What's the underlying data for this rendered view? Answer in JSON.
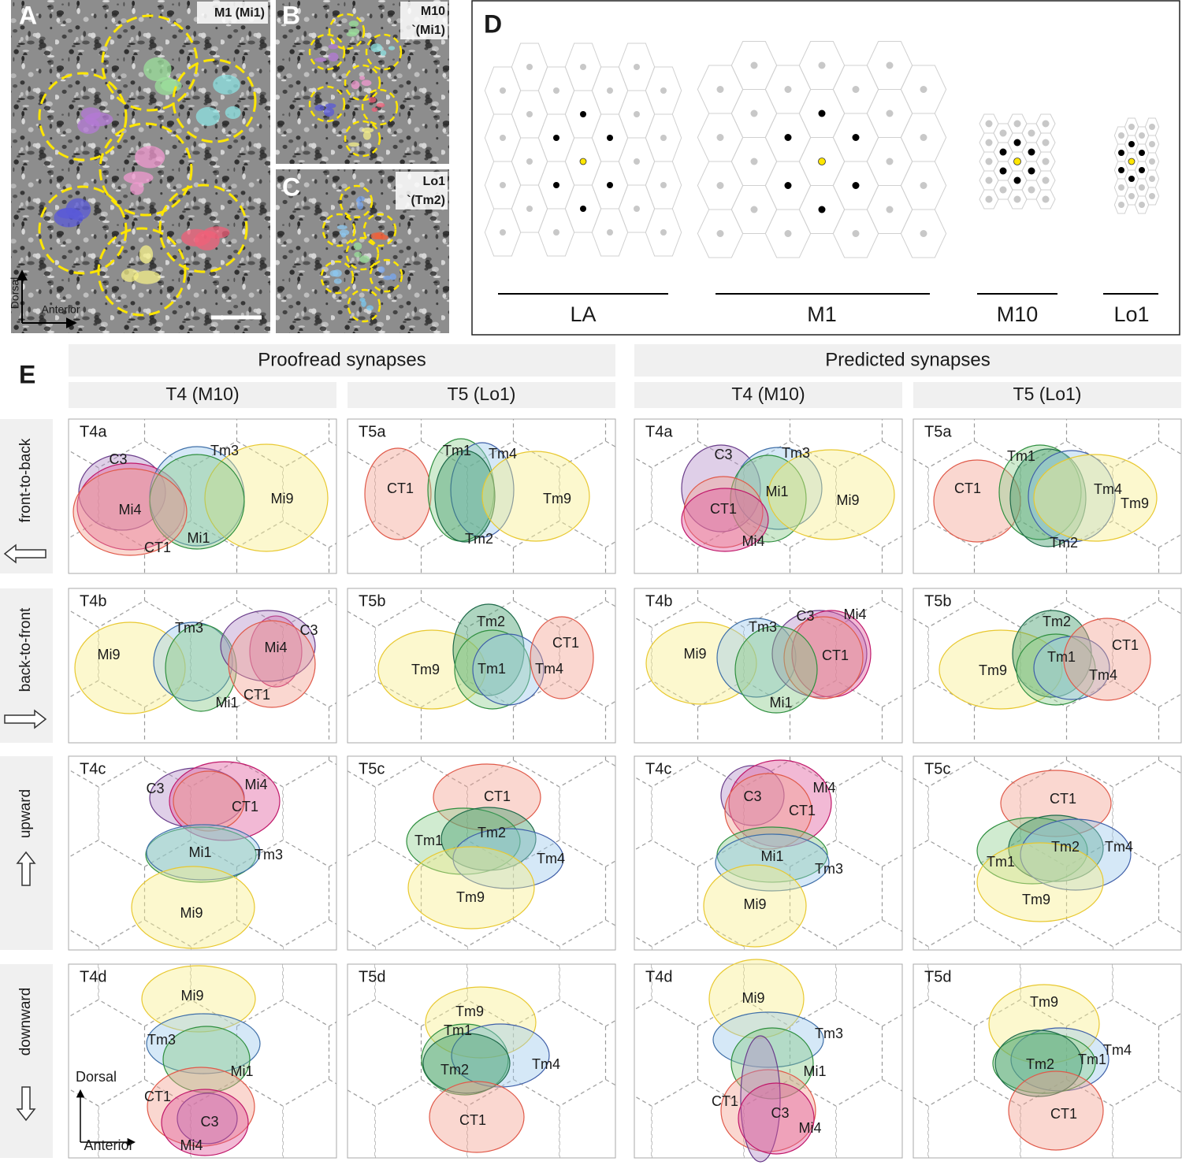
{
  "panel_a": {
    "letter": "A",
    "label": "M1 (Mi1)",
    "axes": [
      "Dorsal",
      "Anterior"
    ]
  },
  "panel_b": {
    "letter": "B",
    "label": [
      "M10",
      "`(Mi1)"
    ]
  },
  "panel_c": {
    "letter": "C",
    "label": [
      "Lo1",
      "`(Tm2)"
    ]
  },
  "panel_d": {
    "letter": "D",
    "regions": [
      "LA",
      "M1",
      "M10",
      "Lo1"
    ]
  },
  "panel_e": {
    "letter": "E",
    "groups": [
      "Proofread synapses",
      "Predicted synapses"
    ],
    "columns": [
      "T4 (M10)",
      "T5 (Lo1)",
      "T4 (M10)",
      "T5 (Lo1)"
    ],
    "rows": [
      "front-to-back",
      "back-to-front",
      "upward",
      "downward"
    ],
    "axes": [
      "Dorsal",
      "Anterior"
    ],
    "panels": [
      {
        "title": "T4a",
        "labels": [
          "C3",
          "Mi4",
          "Tm3",
          "Mi9",
          "Mi1",
          "CT1"
        ]
      },
      {
        "title": "T5a",
        "labels": [
          "CT1",
          "Tm1",
          "Tm4",
          "Tm2",
          "Tm9"
        ]
      },
      {
        "title": "T4a",
        "labels": [
          "C3",
          "Tm3",
          "Mi1",
          "Mi9",
          "CT1",
          "Mi4"
        ]
      },
      {
        "title": "T5a",
        "labels": [
          "CT1",
          "Tm1",
          "Tm2",
          "Tm4",
          "Tm9"
        ]
      },
      {
        "title": "T4b",
        "labels": [
          "Mi9",
          "Tm3",
          "Mi1",
          "Mi4",
          "C3",
          "CT1"
        ]
      },
      {
        "title": "T5b",
        "labels": [
          "Tm9",
          "Tm2",
          "Tm1",
          "Tm4",
          "CT1"
        ]
      },
      {
        "title": "T4b",
        "labels": [
          "Mi9",
          "Tm3",
          "C3",
          "Mi4",
          "CT1",
          "Mi1"
        ]
      },
      {
        "title": "T5b",
        "labels": [
          "Tm9",
          "Tm2",
          "Tm1",
          "Tm4",
          "CT1"
        ]
      },
      {
        "title": "T4c",
        "labels": [
          "C3",
          "Mi4",
          "CT1",
          "Mi1",
          "Tm3",
          "Mi9"
        ]
      },
      {
        "title": "T5c",
        "labels": [
          "CT1",
          "Tm1",
          "Tm2",
          "Tm4",
          "Tm9"
        ]
      },
      {
        "title": "T4c",
        "labels": [
          "C3",
          "Mi4",
          "CT1",
          "Mi1",
          "Tm3",
          "Mi9"
        ]
      },
      {
        "title": "T5c",
        "labels": [
          "CT1",
          "Tm1",
          "Tm2",
          "Tm4",
          "Tm9"
        ]
      },
      {
        "title": "T4d",
        "labels": [
          "Mi9",
          "Tm3",
          "Mi1",
          "CT1",
          "C3",
          "Mi4"
        ]
      },
      {
        "title": "T5d",
        "labels": [
          "Tm9",
          "Tm1",
          "Tm4",
          "Tm2",
          "CT1"
        ]
      },
      {
        "title": "T4d",
        "labels": [
          "Mi9",
          "Tm3",
          "Mi1",
          "CT1",
          "C3",
          "Mi4"
        ]
      },
      {
        "title": "T5d",
        "labels": [
          "Tm9",
          "Tm4",
          "Tm1",
          "Tm2",
          "CT1"
        ]
      }
    ]
  }
}
